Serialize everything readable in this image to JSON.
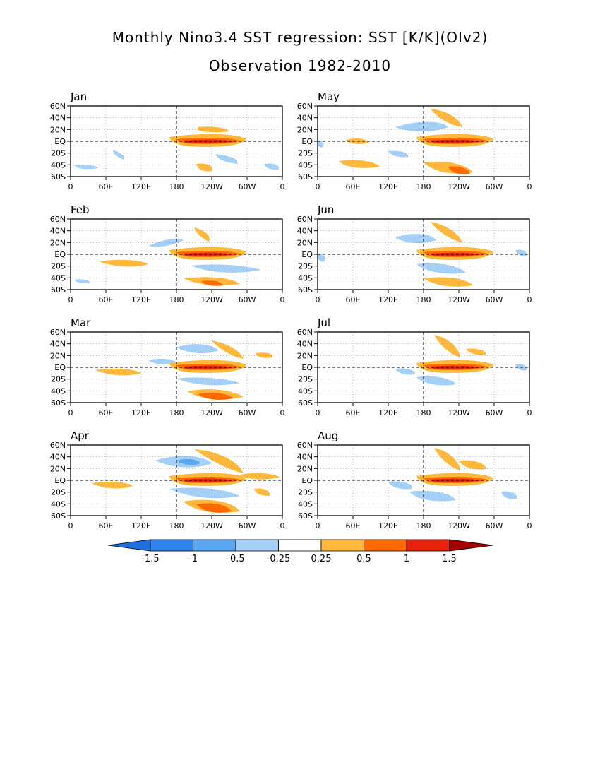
{
  "title": "Monthly Nino3.4 SST regression: SST [K/K](OIv2)",
  "subtitle": "Observation 1982-2010",
  "map_grid": {
    "lon_ticks": [
      "0",
      "60E",
      "120E",
      "180",
      "120W",
      "60W",
      "0"
    ],
    "lat_ticks": [
      "60N",
      "40N",
      "20N",
      "EQ",
      "20S",
      "40S",
      "60S"
    ],
    "lon_range": [
      0,
      360
    ],
    "lat_range": [
      -60,
      60
    ],
    "dashed_reference_lines": [
      "EQ",
      "180"
    ],
    "dotted_grid": "every 20 degrees latitude, 60 degrees longitude"
  },
  "panels": [
    {
      "label": "Jan"
    },
    {
      "label": "May"
    },
    {
      "label": "Feb"
    },
    {
      "label": "Jun"
    },
    {
      "label": "Mar"
    },
    {
      "label": "Jul"
    },
    {
      "label": "Apr"
    },
    {
      "label": "Aug"
    }
  ],
  "colorbar": {
    "labels": [
      "-1.5",
      "-1",
      "-0.5",
      "-0.25",
      "0.25",
      "0.5",
      "1",
      "1.5"
    ],
    "colors": [
      "#1f6fe0",
      "#2f83ec",
      "#5aa6f0",
      "#a4d0f8",
      "#ffffff",
      "#ffb83c",
      "#ff6a00",
      "#e8200c",
      "#a50000"
    ]
  },
  "shading": {
    "warm_light": "#ffb83c",
    "warm_mid": "#ff6a00",
    "warm_strong": "#e8200c",
    "cool_light": "#a4d0f8",
    "cool_mid": "#5aa6f0"
  }
}
